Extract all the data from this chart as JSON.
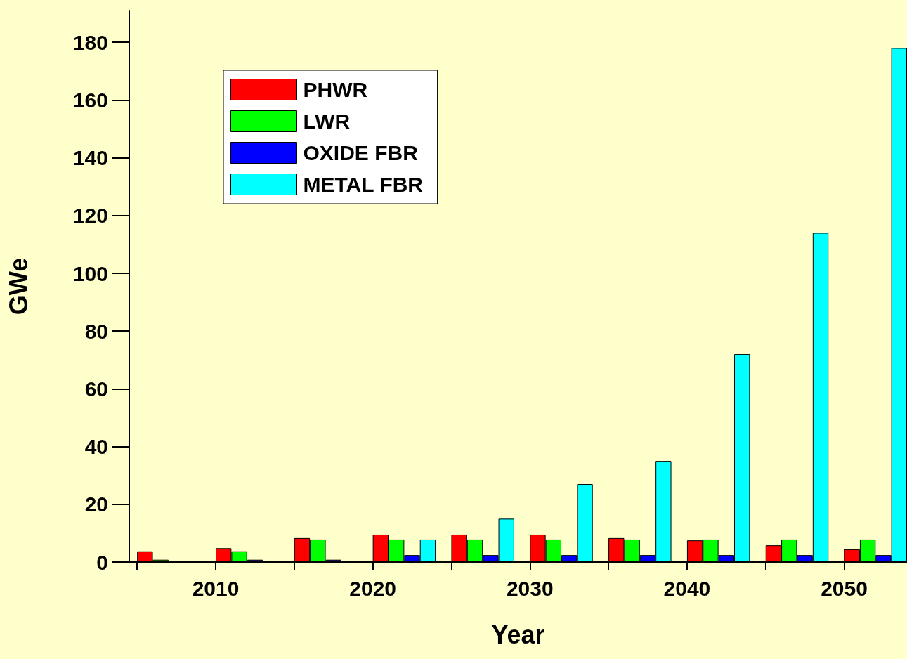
{
  "chart_data": {
    "type": "bar",
    "xlabel": "Year",
    "ylabel": "GWe",
    "x": [
      2007,
      2012,
      2017,
      2022,
      2027,
      2032,
      2037,
      2042,
      2047,
      2052
    ],
    "series": [
      {
        "name": "PHWR",
        "color": "#ff0000",
        "values": [
          3.7,
          4.8,
          8.3,
          9.5,
          9.5,
          9.5,
          8.3,
          7.5,
          5.8,
          4.4
        ]
      },
      {
        "name": "LWR",
        "color": "#00ff00",
        "values": [
          0.8,
          3.7,
          7.8,
          7.8,
          7.8,
          7.8,
          7.8,
          7.8,
          7.8,
          7.8
        ]
      },
      {
        "name": "OXIDE FBR",
        "color": "#0000ff",
        "values": [
          null,
          0.8,
          0.8,
          2.4,
          2.4,
          2.4,
          2.4,
          2.4,
          2.4,
          2.4
        ]
      },
      {
        "name": "METAL FBR",
        "color": "#00ffff",
        "values": [
          null,
          null,
          null,
          7.8,
          15,
          27,
          35,
          72,
          114,
          178
        ]
      }
    ],
    "xlim": [
      2004.5,
      2054
    ],
    "xticks": [
      {
        "value": 2005,
        "label": null
      },
      2010,
      {
        "value": 2015,
        "label": null
      },
      2020,
      {
        "value": 2025,
        "label": null
      },
      2030,
      {
        "value": 2035,
        "label": null
      },
      2040,
      {
        "value": 2045,
        "label": null
      },
      2050
    ],
    "ylim": [
      0,
      191
    ],
    "yticks": [
      0,
      20,
      40,
      60,
      80,
      100,
      120,
      140,
      160,
      180
    ],
    "grid": false,
    "legend": "top left"
  }
}
